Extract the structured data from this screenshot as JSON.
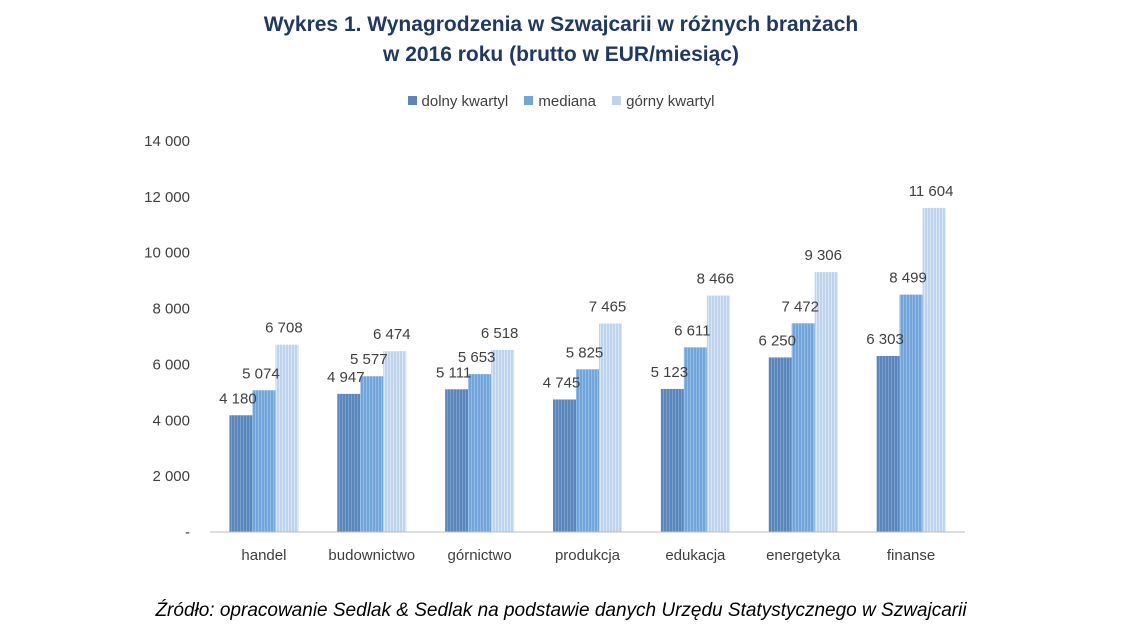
{
  "title_line1": "Wykres 1. Wynagrodzenia w Szwajcarii w różnych branżach",
  "title_line2": "w 2016 roku (brutto w EUR/miesiąc)",
  "source": "Źródło: opracowanie Sedlak & Sedlak na podstawie danych Urzędu Statystycznego w Szwajcarii",
  "colors": {
    "dolny": "#5b86bb",
    "mediana": "#72a6db",
    "gorny": "#bdd3ee"
  },
  "chart_data": {
    "type": "bar",
    "title": "Wykres 1. Wynagrodzenia w Szwajcarii w różnych branżach w 2016 roku (brutto w EUR/miesiąc)",
    "categories": [
      "handel",
      "budownictwo",
      "górnictwo",
      "produkcja",
      "edukacja",
      "energetyka",
      "finanse"
    ],
    "series": [
      {
        "name": "dolny kwartyl",
        "values": [
          4180,
          4947,
          5111,
          4745,
          5123,
          6250,
          6303
        ],
        "labels": [
          "4 180",
          "4 947",
          "5 111",
          "4 745",
          "5 123",
          "6 250",
          "6 303"
        ]
      },
      {
        "name": "mediana",
        "values": [
          5074,
          5577,
          5653,
          5825,
          6611,
          7472,
          8499
        ],
        "labels": [
          "5 074",
          "5 577",
          "5 653",
          "5 825",
          "6 611",
          "7 472",
          "8 499"
        ]
      },
      {
        "name": "górny kwartyl",
        "values": [
          6708,
          6474,
          6518,
          7465,
          8466,
          9306,
          11604
        ],
        "labels": [
          "6 708",
          "6 474",
          "6 518",
          "7 465",
          "8 466",
          "9 306",
          "11 604"
        ]
      }
    ],
    "ylim": [
      0,
      14000
    ],
    "yticks": [
      0,
      2000,
      4000,
      6000,
      8000,
      10000,
      12000,
      14000
    ],
    "ytick_labels": [
      "-",
      "2 000",
      "4 000",
      "6 000",
      "8 000",
      "10 000",
      "12 000",
      "14 000"
    ],
    "xlabel": "",
    "ylabel": "",
    "legend": "top-center",
    "grid": false
  }
}
